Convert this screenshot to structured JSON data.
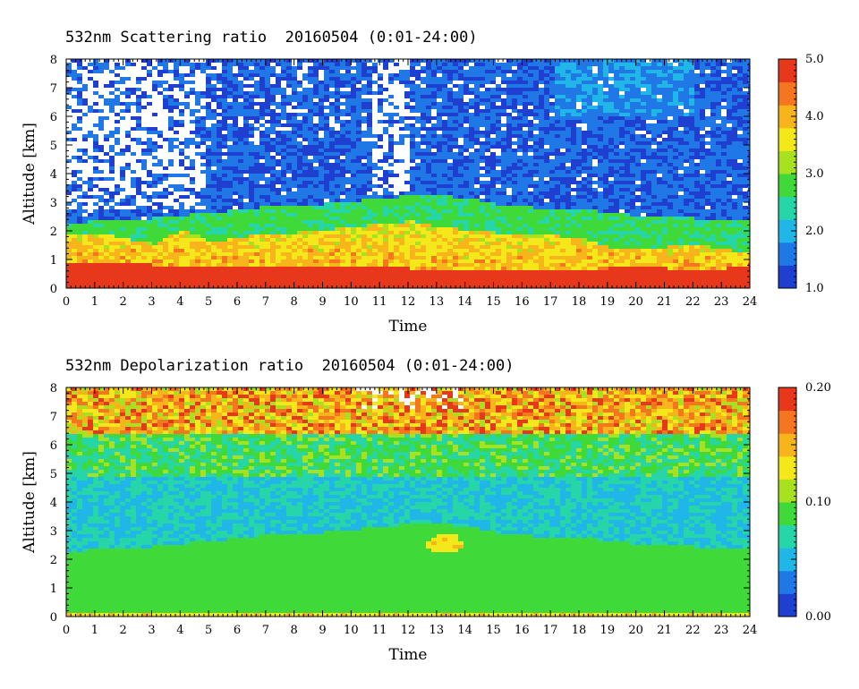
{
  "chart_data": [
    {
      "type": "heatmap",
      "title": "532nm Scattering ratio  20160504 (0:01-24:00)",
      "xlabel": "Time",
      "ylabel": "Altitude [km]",
      "xlim": [
        0,
        24
      ],
      "ylim": [
        0,
        8
      ],
      "x_ticks": [
        "0",
        "1",
        "2",
        "3",
        "4",
        "5",
        "6",
        "7",
        "8",
        "9",
        "10",
        "11",
        "12",
        "13",
        "14",
        "15",
        "16",
        "17",
        "18",
        "19",
        "20",
        "21",
        "22",
        "23",
        "24"
      ],
      "y_ticks": [
        "0",
        "1",
        "2",
        "3",
        "4",
        "5",
        "6",
        "7",
        "8"
      ],
      "colorbar": {
        "min": 1.0,
        "max": 5.0,
        "labels": [
          "1.0",
          "2.0",
          "3.0",
          "4.0",
          "5.0"
        ]
      },
      "colormap": [
        "#1f3fd0",
        "#1f78e6",
        "#21b6e8",
        "#27d6a8",
        "#3fda3a",
        "#a7e11f",
        "#f4e81a",
        "#f7b51b",
        "#f5761e",
        "#e8381c"
      ],
      "layers": {
        "ground_line_altitude_km": 0.2,
        "aerosol_top_km": [
          2.3,
          2.4,
          2.5,
          2.5,
          2.6,
          2.7,
          2.8,
          2.9,
          2.9,
          3.0,
          3.1,
          3.2,
          3.3,
          3.3,
          3.2,
          3.0,
          2.9,
          2.8,
          2.8,
          2.7,
          2.6,
          2.6,
          2.5,
          2.5,
          2.5
        ],
        "dense_layer_top_km": [
          1.9,
          2.0,
          1.8,
          1.6,
          2.1,
          1.7,
          1.8,
          2.0,
          2.0,
          2.1,
          2.2,
          2.3,
          2.4,
          2.2,
          2.1,
          2.0,
          2.0,
          1.9,
          1.8,
          1.5,
          1.4,
          1.5,
          1.6,
          1.4,
          1.3
        ],
        "boundary_km": [
          0.9,
          0.9,
          1.0,
          0.85,
          0.8,
          0.8,
          0.8,
          0.8,
          0.8,
          0.8,
          0.8,
          0.8,
          0.75,
          0.75,
          0.7,
          0.7,
          0.7,
          0.7,
          0.75,
          0.75,
          0.8,
          0.75,
          0.7,
          0.75,
          0.9
        ]
      }
    },
    {
      "type": "heatmap",
      "title": "532nm Depolarization ratio  20160504 (0:01-24:00)",
      "xlabel": "Time",
      "ylabel": "Altitude [km]",
      "xlim": [
        0,
        24
      ],
      "ylim": [
        0,
        8
      ],
      "x_ticks": [
        "0",
        "1",
        "2",
        "3",
        "4",
        "5",
        "6",
        "7",
        "8",
        "9",
        "10",
        "11",
        "12",
        "13",
        "14",
        "15",
        "16",
        "17",
        "18",
        "19",
        "20",
        "21",
        "22",
        "23",
        "24"
      ],
      "y_ticks": [
        "0",
        "1",
        "2",
        "3",
        "4",
        "5",
        "6",
        "7",
        "8"
      ],
      "colorbar": {
        "min": 0.0,
        "max": 0.2,
        "labels": [
          "0.00",
          "0.10",
          "0.20"
        ]
      },
      "colormap": [
        "#1f3fd0",
        "#1f78e6",
        "#21b6e8",
        "#27d6a8",
        "#3fda3a",
        "#a7e11f",
        "#f4e81a",
        "#f7b51b",
        "#f5761e",
        "#e8381c"
      ],
      "layers": {
        "ground_line_altitude_km": 0.05,
        "aerosol_top_km": [
          2.3,
          2.4,
          2.5,
          2.5,
          2.6,
          2.7,
          2.8,
          2.9,
          2.9,
          3.0,
          3.1,
          3.2,
          3.3,
          3.3,
          3.2,
          3.0,
          2.9,
          2.8,
          2.8,
          2.7,
          2.6,
          2.6,
          2.5,
          2.5,
          2.5
        ],
        "dust_patch": {
          "time": 13.2,
          "altitude_km": 2.6
        }
      }
    }
  ]
}
